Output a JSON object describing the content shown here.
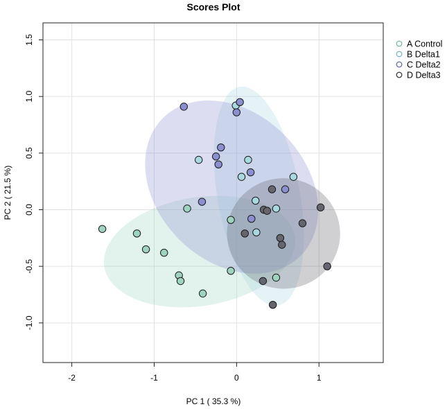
{
  "chart_data": {
    "type": "scatter",
    "title": "Scores Plot",
    "xlabel": "PC 1 ( 35.3 %)",
    "ylabel": "PC 2 ( 21.5 %)",
    "xlim": [
      -2.35,
      1.78
    ],
    "ylim": [
      -1.35,
      1.65
    ],
    "xticks": [
      -2,
      -1,
      0,
      1
    ],
    "yticks": [
      -1.0,
      -0.5,
      0.0,
      0.5,
      1.0,
      1.5
    ],
    "xtick_labels": [
      "-2",
      "-1",
      "0",
      "1"
    ],
    "ytick_labels": [
      "-1.0",
      "-0.5",
      "0.0",
      "0.5",
      "1.0",
      "1.5"
    ],
    "grid": true,
    "legend_position": "top-right, outside plot",
    "series": [
      {
        "name": "A Control",
        "color": "#9ed3bf",
        "edge": "#6fb79b",
        "ellipse": {
          "cx": -0.45,
          "cy": -0.37,
          "rx": 1.17,
          "ry": 0.48,
          "angle_deg": 9
        },
        "points": [
          [
            -1.63,
            -0.17
          ],
          [
            -1.21,
            -0.21
          ],
          [
            -1.1,
            -0.35
          ],
          [
            -0.88,
            -0.38
          ],
          [
            -0.7,
            -0.58
          ],
          [
            -0.68,
            -0.63
          ],
          [
            -0.6,
            0.01
          ],
          [
            -0.41,
            -0.74
          ],
          [
            -0.07,
            -0.09
          ],
          [
            -0.07,
            -0.54
          ],
          [
            0.48,
            -0.6
          ]
        ]
      },
      {
        "name": "B Delta1",
        "color": "#a8d8e0",
        "edge": "#6fb2c0",
        "ellipse": {
          "cx": 0.27,
          "cy": 0.12,
          "rx": 0.5,
          "ry": 0.98,
          "angle_deg": 10
        },
        "points": [
          [
            -0.46,
            0.44
          ],
          [
            -0.01,
            0.92
          ],
          [
            0.06,
            0.29
          ],
          [
            0.14,
            0.44
          ],
          [
            0.23,
            0.08
          ],
          [
            0.24,
            -0.2
          ],
          [
            0.48,
            0.01
          ],
          [
            0.69,
            0.29
          ]
        ]
      },
      {
        "name": "C Delta2",
        "color": "#8b8fcf",
        "edge": "#5e63a8",
        "ellipse": {
          "cx": -0.06,
          "cy": 0.2,
          "rx": 0.9,
          "ry": 0.86,
          "angle_deg": 45
        },
        "points": [
          [
            -0.64,
            0.91
          ],
          [
            -0.42,
            0.07
          ],
          [
            -0.25,
            0.47
          ],
          [
            -0.22,
            0.4
          ],
          [
            -0.19,
            0.55
          ],
          [
            0.0,
            0.86
          ],
          [
            0.04,
            0.95
          ],
          [
            0.17,
            0.33
          ],
          [
            0.18,
            -0.08
          ],
          [
            0.59,
            0.18
          ]
        ]
      },
      {
        "name": "D Delta3",
        "color": "#65656e",
        "edge": "#2b2b33",
        "ellipse": {
          "cx": 0.57,
          "cy": -0.21,
          "rx": 0.67,
          "ry": 0.5,
          "angle_deg": 85
        },
        "points": [
          [
            0.1,
            -0.21
          ],
          [
            0.32,
            -0.63
          ],
          [
            0.33,
            0.0
          ],
          [
            0.37,
            -0.01
          ],
          [
            0.43,
            0.18
          ],
          [
            0.44,
            -0.84
          ],
          [
            0.53,
            -0.25
          ],
          [
            0.55,
            -0.31
          ],
          [
            0.8,
            -0.12
          ],
          [
            1.02,
            0.02
          ],
          [
            1.1,
            -0.5
          ]
        ]
      }
    ]
  }
}
